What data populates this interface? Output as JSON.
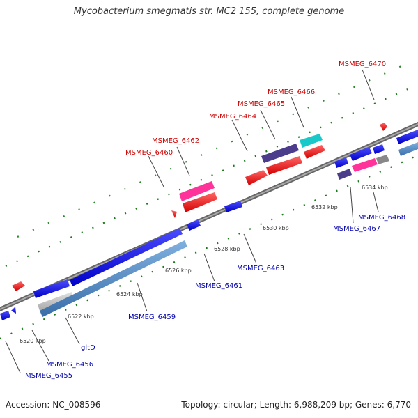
{
  "title": "Mycobacterium smegmatis str. MC2 155, complete genome",
  "accession_text": "Accession: NC_008596",
  "summary_text": "Topology: circular; Length: 6,988,209 bp; Genes: 6,770",
  "ticks": [
    "6520 kbp",
    "6522 kbp",
    "6524 kbp",
    "6526 kbp",
    "6528 kbp",
    "6530 kbp",
    "6532 kbp",
    "6534 kbp"
  ],
  "forward_labels": [
    "MSMEG_6460",
    "MSMEG_6462",
    "MSMEG_6464",
    "MSMEG_6465",
    "MSMEG_6466",
    "MSMEG_6470"
  ],
  "reverse_labels": [
    "MSMEG_6455",
    "MSMEG_6456",
    "gltD",
    "MSMEG_6459",
    "MSMEG_6461",
    "MSMEG_6463",
    "MSMEG_6467",
    "MSMEG_6468"
  ],
  "colors": {
    "forward_gene": "#ff0000",
    "reverse_gene": "#0000ff",
    "pink_gene": "#ff3399",
    "cyan_gene": "#19c8c8",
    "purple_gene": "#4b3c8c",
    "steel_gene": "#4a84c0",
    "grey_gene": "#888888",
    "backbone": "#888888",
    "tick_marks": "#1a7a1a",
    "forward_label": "#cc0000",
    "reverse_label": "#0000aa"
  }
}
